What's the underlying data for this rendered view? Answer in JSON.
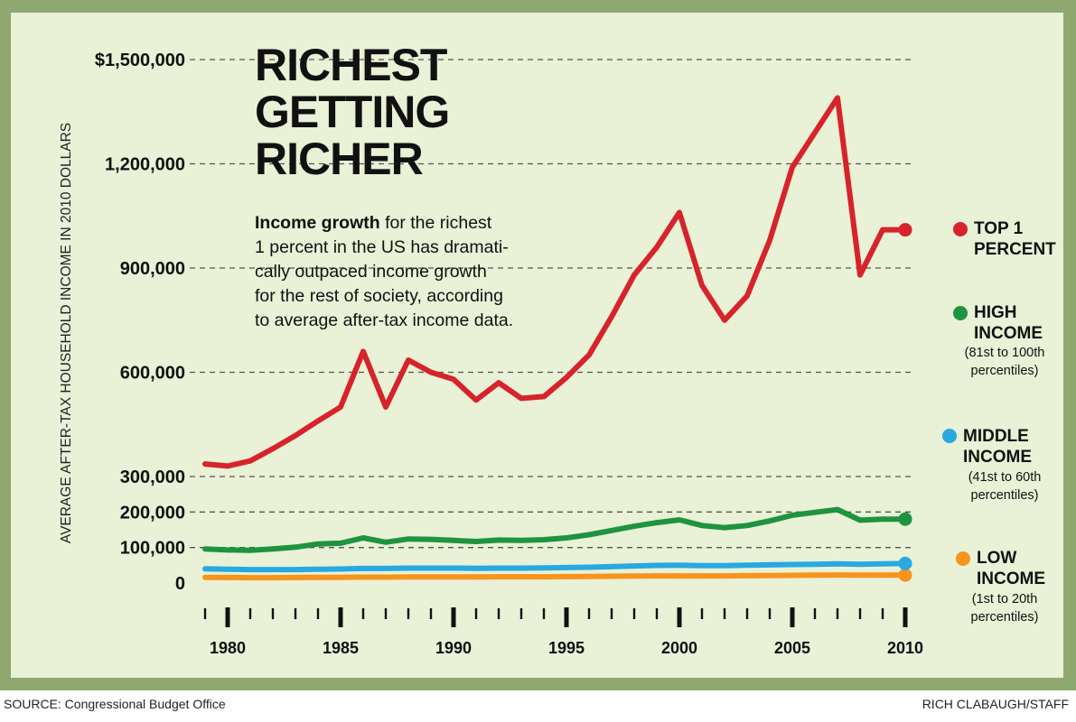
{
  "title_lines": [
    "RICHEST",
    "GETTING",
    "RICHER"
  ],
  "intro": {
    "bold": "Income growth",
    "lines": [
      " for the richest",
      "1 percent in the US has dramati-",
      "cally outpaced income growth",
      "for the rest of society, according",
      "to average after-tax income data."
    ]
  },
  "legend": [
    {
      "label_lines": [
        "TOP 1",
        "PERCENT"
      ],
      "sub_lines": [],
      "color": "#d7232b"
    },
    {
      "label_lines": [
        "HIGH",
        "INCOME"
      ],
      "sub_lines": [
        "(81st to 100th",
        "percentiles)"
      ],
      "color": "#1e9340"
    },
    {
      "label_lines": [
        "MIDDLE",
        "INCOME"
      ],
      "sub_lines": [
        "(41st to 60th",
        "percentiles)"
      ],
      "color": "#27a9e1"
    },
    {
      "label_lines": [
        "LOW",
        "INCOME"
      ],
      "sub_lines": [
        "(1st to 20th",
        "percentiles)"
      ],
      "color": "#f7941d"
    }
  ],
  "footer": {
    "source": "SOURCE: Congressional Budget Office",
    "credit": "RICH CLABAUGH/STAFF"
  },
  "chart_data": {
    "type": "line",
    "title": "RICHEST GETTING RICHER",
    "ylabel": "AVERAGE AFTER-TAX HOUSEHOLD INCOME IN 2010 DOLLARS",
    "xlabel": "",
    "x": [
      1979,
      1980,
      1981,
      1982,
      1983,
      1984,
      1985,
      1986,
      1987,
      1988,
      1989,
      1990,
      1991,
      1992,
      1993,
      1994,
      1995,
      1996,
      1997,
      1998,
      1999,
      2000,
      2001,
      2002,
      2003,
      2004,
      2005,
      2006,
      2007,
      2008,
      2009,
      2010
    ],
    "x_tick_labels": [
      "1980",
      "1985",
      "1990",
      "1995",
      "2000",
      "2005",
      "2010"
    ],
    "y_tick_labels": [
      {
        "value": 0,
        "label": "0"
      },
      {
        "value": 100000,
        "label": "100,000"
      },
      {
        "value": 200000,
        "label": "200,000"
      },
      {
        "value": 300000,
        "label": "300,000"
      },
      {
        "value": 600000,
        "label": "600,000"
      },
      {
        "value": 900000,
        "label": "900,000"
      },
      {
        "value": 1200000,
        "label": "1,200,000"
      },
      {
        "value": 1500000,
        "label": "$1,500,000"
      }
    ],
    "ylim": [
      0,
      1500000
    ],
    "series": [
      {
        "name": "TOP 1 PERCENT",
        "color": "#d7232b",
        "values": [
          336000,
          330000,
          345000,
          380000,
          418000,
          460000,
          500000,
          660000,
          500000,
          635000,
          600000,
          580000,
          520000,
          570000,
          525000,
          530000,
          585000,
          650000,
          760000,
          880000,
          960000,
          1060000,
          850000,
          750000,
          820000,
          980000,
          1190000,
          1290000,
          1390000,
          880000,
          1010000,
          1010000
        ]
      },
      {
        "name": "HIGH INCOME",
        "color": "#1e9340",
        "values": [
          96000,
          93000,
          92000,
          96000,
          101000,
          110000,
          112000,
          127000,
          115000,
          124000,
          123000,
          120000,
          117000,
          121000,
          120000,
          122000,
          127000,
          136000,
          148000,
          160000,
          170000,
          178000,
          162000,
          156000,
          162000,
          175000,
          191000,
          199000,
          207000,
          177000,
          180000,
          180000
        ]
      },
      {
        "name": "MIDDLE INCOME",
        "color": "#27a9e1",
        "values": [
          40000,
          39000,
          38000,
          38000,
          38000,
          39000,
          39500,
          41000,
          41000,
          42000,
          42000,
          42000,
          41500,
          42000,
          42000,
          42500,
          43500,
          44500,
          46000,
          48000,
          49500,
          50000,
          49000,
          49000,
          50000,
          51000,
          52000,
          53000,
          54000,
          53000,
          54000,
          55000
        ]
      },
      {
        "name": "LOW INCOME",
        "color": "#f7941d",
        "values": [
          16000,
          15500,
          15000,
          15000,
          15500,
          16000,
          16000,
          16500,
          16500,
          17000,
          17000,
          17000,
          17000,
          17500,
          17500,
          17500,
          18000,
          18500,
          19000,
          19500,
          20000,
          20000,
          20000,
          20000,
          20500,
          21000,
          21500,
          22000,
          22500,
          22000,
          22000,
          22500
        ]
      }
    ],
    "endpoint_markers": true,
    "legend": "right"
  }
}
